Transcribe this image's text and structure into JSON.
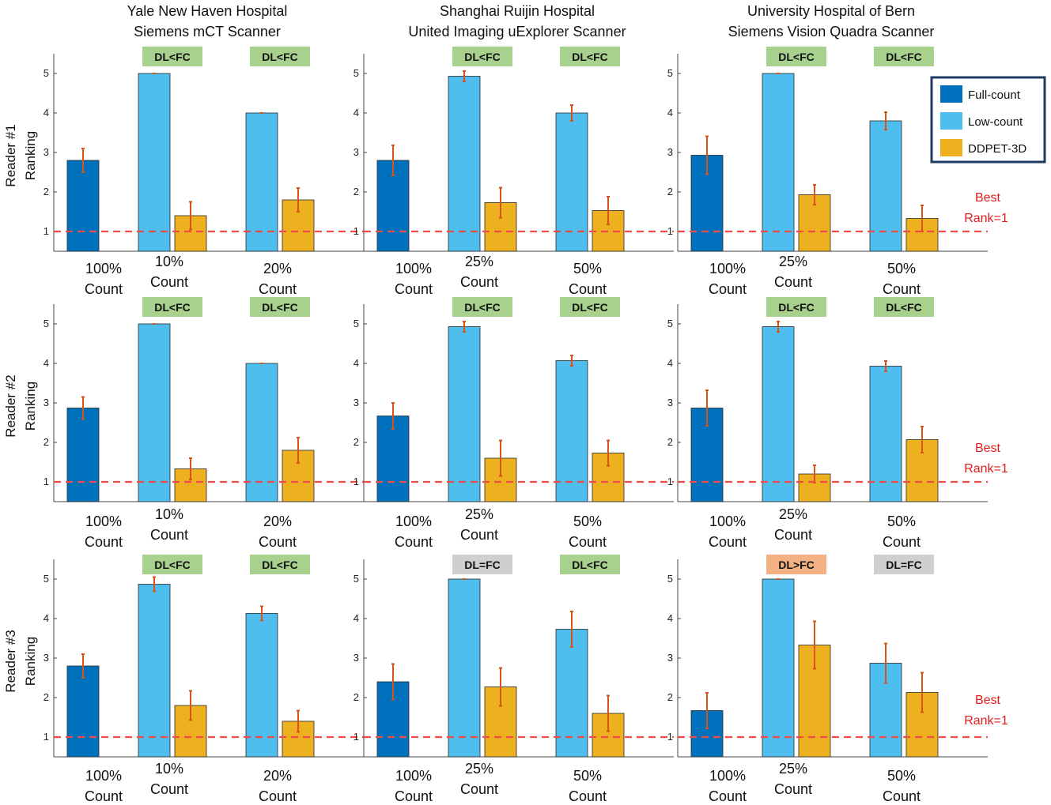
{
  "chart_data": {
    "type": "bar",
    "y_label": "Ranking",
    "ylim": [
      0.5,
      5.5
    ],
    "yticks": [
      1,
      2,
      3,
      4,
      5
    ],
    "reference_line": {
      "value": 1,
      "style": "dashed",
      "color": "#f04a4a"
    },
    "best_label": [
      "Best",
      "Rank=1"
    ],
    "count_word": "Count",
    "columns": [
      {
        "title": [
          "Yale New Haven Hospital",
          "Siemens mCT Scanner"
        ],
        "full_count": "100%",
        "low_counts": [
          "10%",
          "20%"
        ]
      },
      {
        "title": [
          "Shanghai Ruijin Hospital",
          "United Imaging uExplorer Scanner"
        ],
        "full_count": "100%",
        "low_counts": [
          "25%",
          "50%"
        ]
      },
      {
        "title": [
          "University Hospital of Bern",
          "Siemens Vision Quadra Scanner"
        ],
        "full_count": "100%",
        "low_counts": [
          "25%",
          "50%"
        ]
      }
    ],
    "readers": [
      "Reader #1",
      "Reader #2",
      "Reader #3"
    ],
    "legend": [
      {
        "name": "Full-count",
        "color": "#0072bd"
      },
      {
        "name": "Low-count",
        "color": "#4dbeee"
      },
      {
        "name": "DDPET-3D",
        "color": "#edb120"
      }
    ],
    "badge_colors": {
      "DL<FC": "#a9d18e",
      "DL=FC": "#d0cece",
      "DL>FC": "#f4b183"
    },
    "panels": [
      {
        "reader": 0,
        "column": 0,
        "full": {
          "value": 2.8,
          "err": 0.3
        },
        "groups": [
          {
            "low": {
              "value": 5.0,
              "err": 0.0
            },
            "dl": {
              "value": 1.4,
              "err": 0.35
            },
            "badge": "DL<FC"
          },
          {
            "low": {
              "value": 4.0,
              "err": 0.0
            },
            "dl": {
              "value": 1.8,
              "err": 0.3
            },
            "badge": "DL<FC"
          }
        ]
      },
      {
        "reader": 0,
        "column": 1,
        "full": {
          "value": 2.8,
          "err": 0.38
        },
        "groups": [
          {
            "low": {
              "value": 4.93,
              "err": 0.13
            },
            "dl": {
              "value": 1.73,
              "err": 0.38
            },
            "badge": "DL<FC"
          },
          {
            "low": {
              "value": 4.0,
              "err": 0.2
            },
            "dl": {
              "value": 1.53,
              "err": 0.35
            },
            "badge": "DL<FC"
          }
        ]
      },
      {
        "reader": 0,
        "column": 2,
        "full": {
          "value": 2.93,
          "err": 0.48
        },
        "groups": [
          {
            "low": {
              "value": 5.0,
              "err": 0.0
            },
            "dl": {
              "value": 1.93,
              "err": 0.25
            },
            "badge": "DL<FC"
          },
          {
            "low": {
              "value": 3.8,
              "err": 0.22
            },
            "dl": {
              "value": 1.33,
              "err": 0.33
            },
            "badge": "DL<FC"
          }
        ]
      },
      {
        "reader": 1,
        "column": 0,
        "full": {
          "value": 2.87,
          "err": 0.28
        },
        "groups": [
          {
            "low": {
              "value": 5.0,
              "err": 0.0
            },
            "dl": {
              "value": 1.33,
              "err": 0.27
            },
            "badge": "DL<FC"
          },
          {
            "low": {
              "value": 4.0,
              "err": 0.0
            },
            "dl": {
              "value": 1.8,
              "err": 0.32
            },
            "badge": "DL<FC"
          }
        ]
      },
      {
        "reader": 1,
        "column": 1,
        "full": {
          "value": 2.67,
          "err": 0.33
        },
        "groups": [
          {
            "low": {
              "value": 4.93,
              "err": 0.13
            },
            "dl": {
              "value": 1.6,
              "err": 0.45
            },
            "badge": "DL<FC"
          },
          {
            "low": {
              "value": 4.07,
              "err": 0.13
            },
            "dl": {
              "value": 1.73,
              "err": 0.32
            },
            "badge": "DL<FC"
          }
        ]
      },
      {
        "reader": 1,
        "column": 2,
        "full": {
          "value": 2.87,
          "err": 0.45
        },
        "groups": [
          {
            "low": {
              "value": 4.93,
              "err": 0.13
            },
            "dl": {
              "value": 1.2,
              "err": 0.22
            },
            "badge": "DL<FC"
          },
          {
            "low": {
              "value": 3.93,
              "err": 0.13
            },
            "dl": {
              "value": 2.07,
              "err": 0.33
            },
            "badge": "DL<FC"
          }
        ]
      },
      {
        "reader": 2,
        "column": 0,
        "full": {
          "value": 2.8,
          "err": 0.3
        },
        "groups": [
          {
            "low": {
              "value": 4.87,
              "err": 0.18
            },
            "dl": {
              "value": 1.8,
              "err": 0.37
            },
            "badge": "DL<FC"
          },
          {
            "low": {
              "value": 4.13,
              "err": 0.18
            },
            "dl": {
              "value": 1.4,
              "err": 0.27
            },
            "badge": "DL<FC"
          }
        ]
      },
      {
        "reader": 2,
        "column": 1,
        "full": {
          "value": 2.4,
          "err": 0.45
        },
        "groups": [
          {
            "low": {
              "value": 5.0,
              "err": 0.0
            },
            "dl": {
              "value": 2.27,
              "err": 0.48
            },
            "badge": "DL=FC"
          },
          {
            "low": {
              "value": 3.73,
              "err": 0.45
            },
            "dl": {
              "value": 1.6,
              "err": 0.45
            },
            "badge": "DL<FC"
          }
        ]
      },
      {
        "reader": 2,
        "column": 2,
        "full": {
          "value": 1.67,
          "err": 0.45
        },
        "groups": [
          {
            "low": {
              "value": 5.0,
              "err": 0.0
            },
            "dl": {
              "value": 3.33,
              "err": 0.6
            },
            "badge": "DL>FC"
          },
          {
            "low": {
              "value": 2.87,
              "err": 0.5
            },
            "dl": {
              "value": 2.13,
              "err": 0.5
            },
            "badge": "DL=FC"
          }
        ]
      }
    ]
  }
}
